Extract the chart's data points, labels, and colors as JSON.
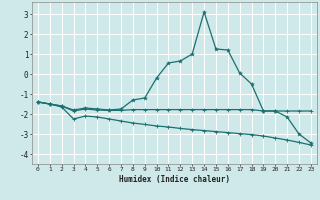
{
  "title": "",
  "xlabel": "Humidex (Indice chaleur)",
  "bg_color": "#cfe8ea",
  "grid_color": "#ffffff",
  "line_color": "#1a7070",
  "xlim": [
    -0.5,
    23.5
  ],
  "ylim": [
    -4.5,
    3.6
  ],
  "xticks": [
    0,
    1,
    2,
    3,
    4,
    5,
    6,
    7,
    8,
    9,
    10,
    11,
    12,
    13,
    14,
    15,
    16,
    17,
    18,
    19,
    20,
    21,
    22,
    23
  ],
  "yticks": [
    -4,
    -3,
    -2,
    -1,
    0,
    1,
    2,
    3
  ],
  "line1_x": [
    0,
    1,
    2,
    3,
    4,
    5,
    6,
    7,
    8,
    9,
    10,
    11,
    12,
    13,
    14,
    15,
    16,
    17,
    18,
    19,
    20,
    21,
    22,
    23
  ],
  "line1_y": [
    -1.4,
    -1.5,
    -1.6,
    -1.8,
    -1.7,
    -1.75,
    -1.8,
    -1.75,
    -1.3,
    -1.2,
    -0.2,
    0.55,
    0.65,
    1.0,
    3.1,
    1.25,
    1.2,
    0.05,
    -0.5,
    -1.85,
    -1.85,
    -2.15,
    -3.0,
    -3.45
  ],
  "line2_x": [
    0,
    1,
    2,
    3,
    4,
    5,
    6,
    7,
    8,
    9,
    10,
    11,
    12,
    13,
    14,
    15,
    16,
    17,
    18,
    19,
    20,
    21,
    22,
    23
  ],
  "line2_y": [
    -1.4,
    -1.5,
    -1.6,
    -1.85,
    -1.75,
    -1.8,
    -1.82,
    -1.82,
    -1.78,
    -1.78,
    -1.78,
    -1.78,
    -1.78,
    -1.78,
    -1.78,
    -1.78,
    -1.78,
    -1.78,
    -1.78,
    -1.85,
    -1.85,
    -1.85,
    -1.85,
    -1.85
  ],
  "line3_x": [
    0,
    1,
    2,
    3,
    4,
    5,
    6,
    7,
    8,
    9,
    10,
    11,
    12,
    13,
    14,
    15,
    16,
    17,
    18,
    19,
    20,
    21,
    22,
    23
  ],
  "line3_y": [
    -1.4,
    -1.5,
    -1.65,
    -2.25,
    -2.1,
    -2.15,
    -2.25,
    -2.35,
    -2.45,
    -2.52,
    -2.6,
    -2.65,
    -2.72,
    -2.78,
    -2.83,
    -2.88,
    -2.93,
    -2.98,
    -3.03,
    -3.1,
    -3.2,
    -3.3,
    -3.42,
    -3.55
  ]
}
